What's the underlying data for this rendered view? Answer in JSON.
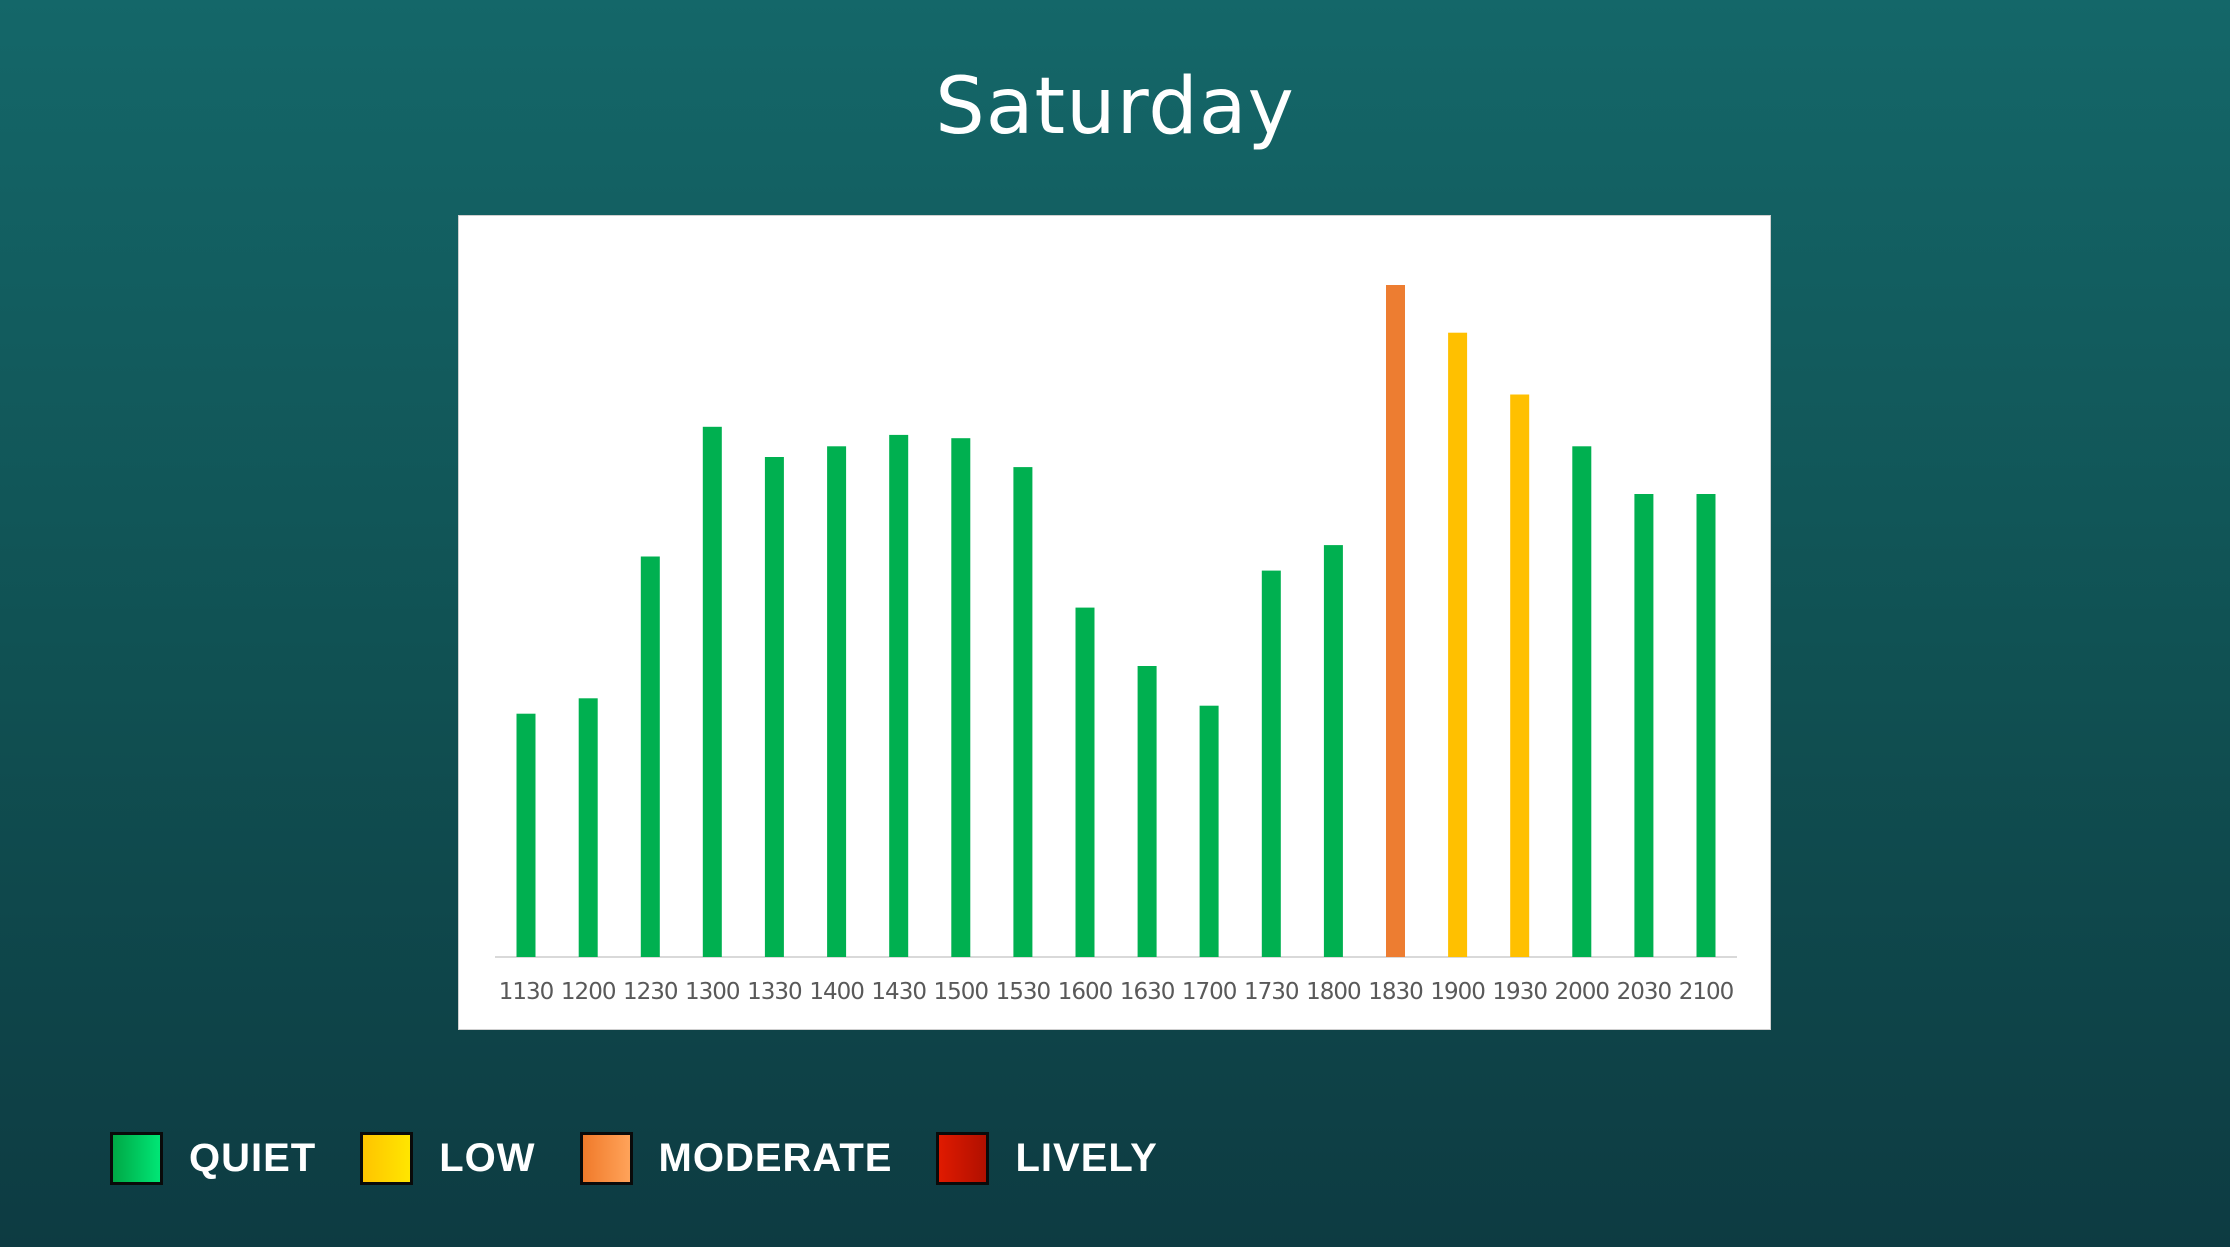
{
  "title": "Saturday",
  "chart_data": {
    "type": "bar",
    "title": "Saturday",
    "xlabel": "",
    "ylabel": "",
    "ylim": [
      0,
      100
    ],
    "grid": false,
    "categories": [
      "1130",
      "1200",
      "1230",
      "1300",
      "1330",
      "1400",
      "1430",
      "1500",
      "1530",
      "1600",
      "1630",
      "1700",
      "1730",
      "1800",
      "1830",
      "1900",
      "1930",
      "2000",
      "2030",
      "2100"
    ],
    "values": [
      36.2,
      38.5,
      59.6,
      78.9,
      74.4,
      76.0,
      77.7,
      77.2,
      72.9,
      52.0,
      43.3,
      37.4,
      57.5,
      61.3,
      100.0,
      92.9,
      83.7,
      76.0,
      68.9,
      68.9
    ],
    "bar_levels": [
      "QUIET",
      "QUIET",
      "QUIET",
      "QUIET",
      "QUIET",
      "QUIET",
      "QUIET",
      "QUIET",
      "QUIET",
      "QUIET",
      "QUIET",
      "QUIET",
      "QUIET",
      "QUIET",
      "MODERATE",
      "LOW",
      "LOW",
      "QUIET",
      "QUIET",
      "QUIET"
    ]
  },
  "level_colors": {
    "QUIET": "#00b050",
    "LOW": "#ffc000",
    "MODERATE": "#ed7d31",
    "LIVELY": "#c00000"
  },
  "legend": [
    {
      "label": "QUIET",
      "swatch_from": "#00a845",
      "swatch_to": "#00e676"
    },
    {
      "label": "LOW",
      "swatch_from": "#ffc400",
      "swatch_to": "#ffe600"
    },
    {
      "label": "MODERATE",
      "swatch_from": "#f07a2a",
      "swatch_to": "#ffa35a"
    },
    {
      "label": "LIVELY",
      "swatch_from": "#e01a00",
      "swatch_to": "#b01000"
    }
  ]
}
